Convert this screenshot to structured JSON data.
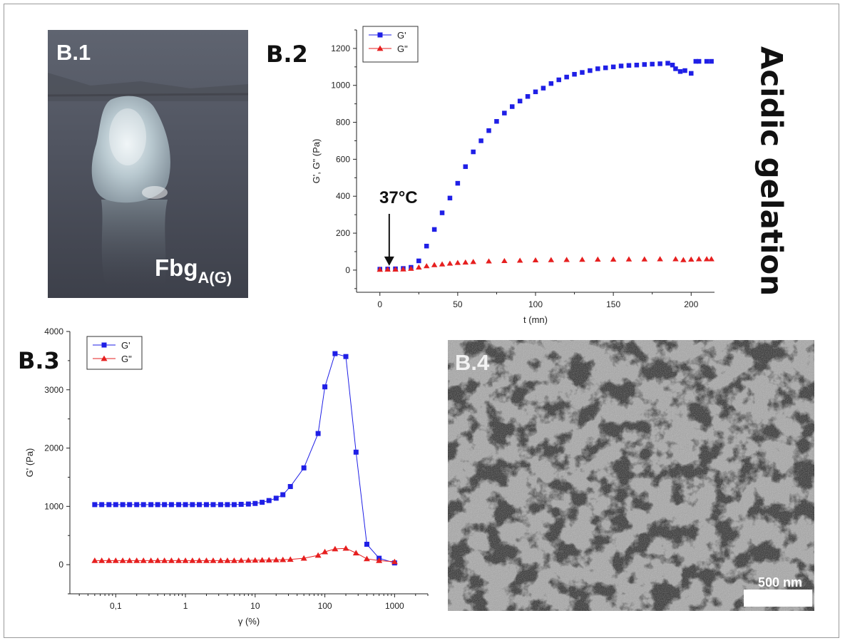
{
  "figure": {
    "side_title": "Acidic gelation",
    "panels": {
      "b1": {
        "label": "B.1",
        "sample_base": "Fbg",
        "sample_sub": "A(G)"
      },
      "b2": {
        "label": "B.2",
        "annotation": "37°C"
      },
      "b3": {
        "label": "B.3"
      },
      "b4": {
        "label": "B.4",
        "scale_bar": "500 nm"
      }
    }
  },
  "colors": {
    "gprime": "#1f1fe6",
    "gsecond": "#e61f1f"
  },
  "chart_data": [
    {
      "type": "scatter",
      "panel": "B.2",
      "xlabel": "t (mn)",
      "ylabel": "G', G\" (Pa)",
      "xlim": [
        -15,
        215
      ],
      "ylim": [
        -120,
        1300
      ],
      "xticks": [
        0,
        50,
        100,
        150,
        200
      ],
      "yticks": [
        0,
        200,
        400,
        600,
        800,
        1000,
        1200
      ],
      "legend_position": "top-left",
      "annotation": {
        "text": "37°C",
        "x": 6,
        "y": 0
      },
      "series": [
        {
          "name": "G'",
          "marker": "square",
          "color": "#1f1fe6",
          "points": [
            [
              0,
              5
            ],
            [
              5,
              6
            ],
            [
              10,
              7
            ],
            [
              15,
              9
            ],
            [
              20,
              15
            ],
            [
              25,
              50
            ],
            [
              30,
              130
            ],
            [
              35,
              220
            ],
            [
              40,
              310
            ],
            [
              45,
              390
            ],
            [
              50,
              470
            ],
            [
              55,
              560
            ],
            [
              60,
              640
            ],
            [
              65,
              700
            ],
            [
              70,
              755
            ],
            [
              75,
              805
            ],
            [
              80,
              850
            ],
            [
              85,
              885
            ],
            [
              90,
              915
            ],
            [
              95,
              940
            ],
            [
              100,
              965
            ],
            [
              105,
              985
            ],
            [
              110,
              1010
            ],
            [
              115,
              1030
            ],
            [
              120,
              1045
            ],
            [
              125,
              1060
            ],
            [
              130,
              1070
            ],
            [
              135,
              1080
            ],
            [
              140,
              1090
            ],
            [
              145,
              1095
            ],
            [
              150,
              1100
            ],
            [
              155,
              1105
            ],
            [
              160,
              1108
            ],
            [
              165,
              1110
            ],
            [
              170,
              1113
            ],
            [
              175,
              1115
            ],
            [
              180,
              1117
            ],
            [
              185,
              1120
            ],
            [
              188,
              1110
            ],
            [
              190,
              1090
            ],
            [
              193,
              1075
            ],
            [
              196,
              1080
            ],
            [
              200,
              1065
            ],
            [
              203,
              1130
            ],
            [
              205,
              1130
            ],
            [
              210,
              1130
            ],
            [
              213,
              1130
            ]
          ]
        },
        {
          "name": "G\"",
          "marker": "triangle",
          "color": "#e61f1f",
          "points": [
            [
              0,
              3
            ],
            [
              5,
              4
            ],
            [
              10,
              4
            ],
            [
              15,
              5
            ],
            [
              20,
              8
            ],
            [
              25,
              15
            ],
            [
              30,
              22
            ],
            [
              35,
              28
            ],
            [
              40,
              32
            ],
            [
              45,
              36
            ],
            [
              50,
              40
            ],
            [
              55,
              42
            ],
            [
              60,
              45
            ],
            [
              70,
              48
            ],
            [
              80,
              50
            ],
            [
              90,
              52
            ],
            [
              100,
              54
            ],
            [
              110,
              55
            ],
            [
              120,
              56
            ],
            [
              130,
              57
            ],
            [
              140,
              58
            ],
            [
              150,
              58
            ],
            [
              160,
              59
            ],
            [
              170,
              59
            ],
            [
              180,
              60
            ],
            [
              190,
              60
            ],
            [
              195,
              55
            ],
            [
              200,
              58
            ],
            [
              205,
              60
            ],
            [
              210,
              60
            ],
            [
              213,
              60
            ]
          ]
        }
      ]
    },
    {
      "type": "line",
      "panel": "B.3",
      "xscale": "log",
      "xlabel": "γ (%)",
      "ylabel": "G' (Pa)",
      "xlim": [
        0.022,
        3000
      ],
      "ylim": [
        -500,
        4000
      ],
      "xticks": [
        0.1,
        1,
        10,
        100,
        1000
      ],
      "xtick_labels": [
        "0,1",
        "1",
        "10",
        "100",
        "1000"
      ],
      "yticks": [
        0,
        1000,
        2000,
        3000,
        4000
      ],
      "legend_position": "top-left",
      "series": [
        {
          "name": "G'",
          "marker": "square",
          "color": "#1f1fe6",
          "points": [
            [
              0.05,
              1030
            ],
            [
              0.063,
              1030
            ],
            [
              0.08,
              1030
            ],
            [
              0.1,
              1030
            ],
            [
              0.126,
              1030
            ],
            [
              0.158,
              1030
            ],
            [
              0.2,
              1030
            ],
            [
              0.25,
              1030
            ],
            [
              0.32,
              1030
            ],
            [
              0.4,
              1030
            ],
            [
              0.5,
              1030
            ],
            [
              0.63,
              1030
            ],
            [
              0.8,
              1030
            ],
            [
              1,
              1030
            ],
            [
              1.26,
              1030
            ],
            [
              1.58,
              1030
            ],
            [
              2,
              1030
            ],
            [
              2.5,
              1030
            ],
            [
              3.2,
              1030
            ],
            [
              4,
              1030
            ],
            [
              5,
              1030
            ],
            [
              6.3,
              1035
            ],
            [
              8,
              1040
            ],
            [
              10,
              1050
            ],
            [
              12.6,
              1070
            ],
            [
              15.8,
              1100
            ],
            [
              20,
              1140
            ],
            [
              25,
              1200
            ],
            [
              32,
              1340
            ],
            [
              50,
              1660
            ],
            [
              80,
              2250
            ],
            [
              100,
              3050
            ],
            [
              140,
              3620
            ],
            [
              200,
              3570
            ],
            [
              280,
              1930
            ],
            [
              400,
              350
            ],
            [
              600,
              110
            ],
            [
              1000,
              30
            ]
          ]
        },
        {
          "name": "G\"",
          "marker": "triangle",
          "color": "#e61f1f",
          "points": [
            [
              0.05,
              70
            ],
            [
              0.063,
              70
            ],
            [
              0.08,
              70
            ],
            [
              0.1,
              70
            ],
            [
              0.126,
              70
            ],
            [
              0.158,
              70
            ],
            [
              0.2,
              70
            ],
            [
              0.25,
              70
            ],
            [
              0.32,
              70
            ],
            [
              0.4,
              70
            ],
            [
              0.5,
              70
            ],
            [
              0.63,
              70
            ],
            [
              0.8,
              70
            ],
            [
              1,
              70
            ],
            [
              1.26,
              70
            ],
            [
              1.58,
              70
            ],
            [
              2,
              70
            ],
            [
              2.5,
              70
            ],
            [
              3.2,
              70
            ],
            [
              4,
              70
            ],
            [
              5,
              70
            ],
            [
              6.3,
              72
            ],
            [
              8,
              74
            ],
            [
              10,
              76
            ],
            [
              12.6,
              78
            ],
            [
              15.8,
              80
            ],
            [
              20,
              82
            ],
            [
              25,
              85
            ],
            [
              32,
              90
            ],
            [
              50,
              110
            ],
            [
              80,
              160
            ],
            [
              100,
              220
            ],
            [
              140,
              270
            ],
            [
              200,
              280
            ],
            [
              280,
              200
            ],
            [
              400,
              100
            ],
            [
              600,
              70
            ],
            [
              1000,
              50
            ]
          ]
        }
      ]
    }
  ]
}
